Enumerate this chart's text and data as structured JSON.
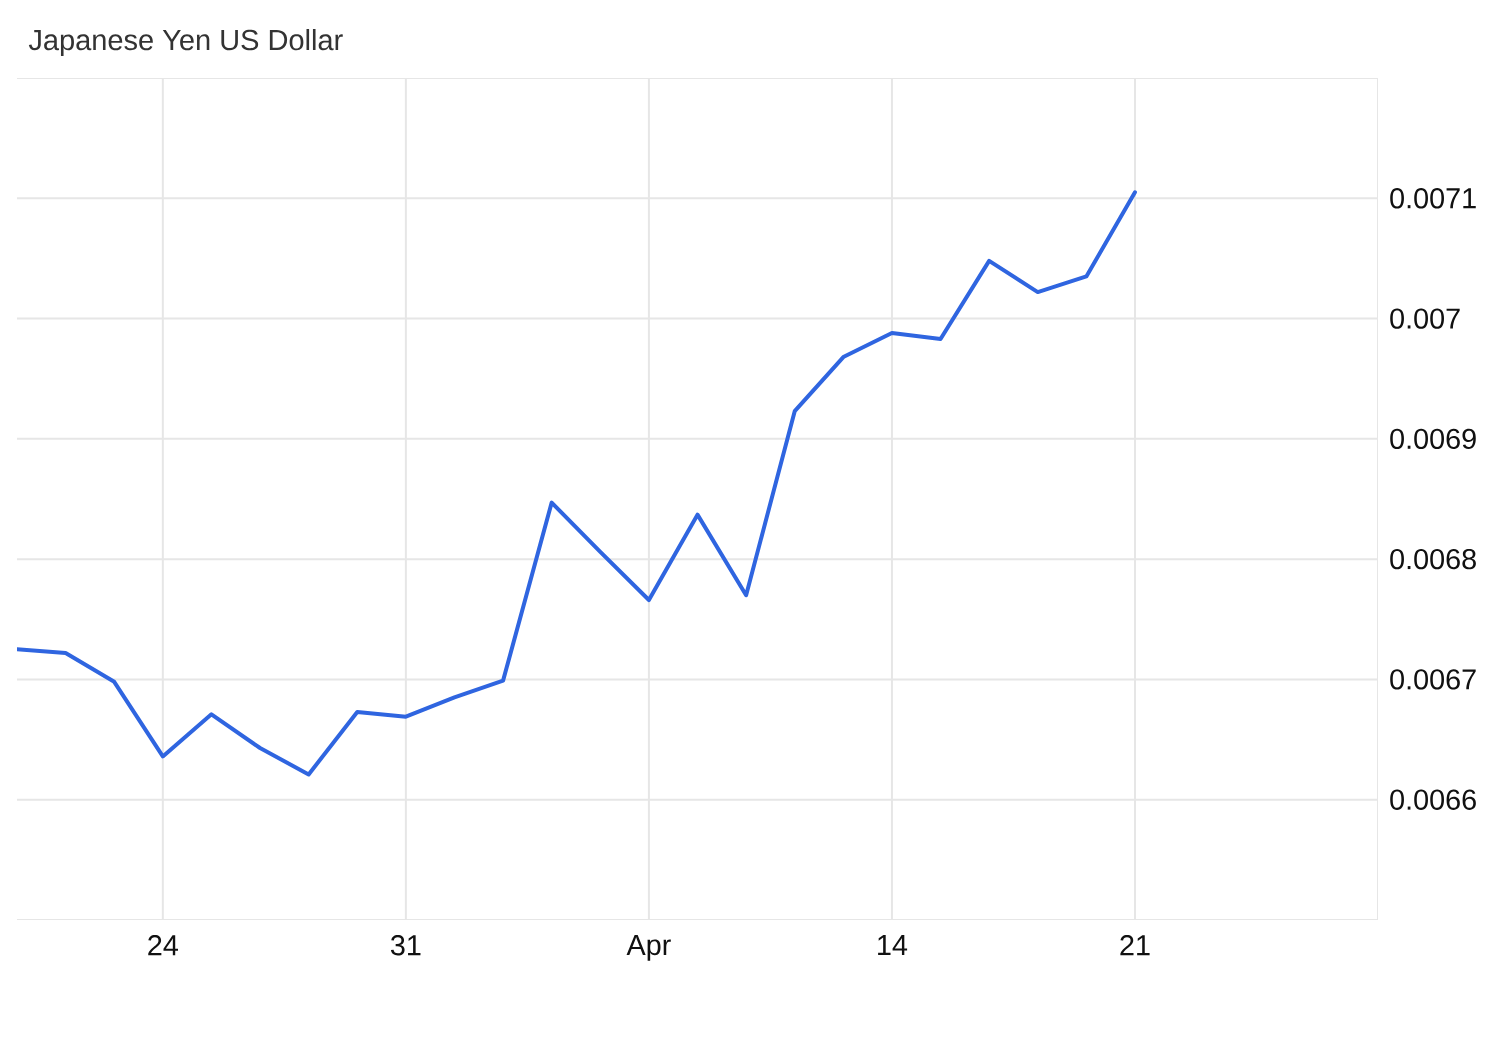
{
  "chart_data": {
    "type": "line",
    "title": "Japanese Yen US Dollar",
    "categories": [
      null,
      null,
      null,
      "24",
      null,
      null,
      null,
      null,
      "31",
      null,
      null,
      null,
      null,
      "Apr",
      null,
      null,
      null,
      null,
      "14",
      null,
      null,
      null,
      null,
      "21",
      null,
      null,
      null,
      null,
      null
    ],
    "values": [
      0.006725,
      0.006722,
      0.006698,
      0.006636,
      0.006671,
      0.006643,
      0.006621,
      0.006673,
      0.006669,
      0.006685,
      0.006699,
      0.006847,
      0.006806,
      0.006766,
      0.006837,
      0.00677,
      0.006923,
      0.006968,
      0.006988,
      0.006983,
      0.007048,
      0.007022,
      0.007035,
      0.007105,
      null,
      null,
      null,
      null,
      null
    ],
    "color": "#2f65e0",
    "ylim": [
      0.0065,
      0.0072
    ],
    "yticks": [
      0.0066,
      0.0067,
      0.0068,
      0.0069,
      0.007,
      0.0071
    ],
    "grid": true
  }
}
